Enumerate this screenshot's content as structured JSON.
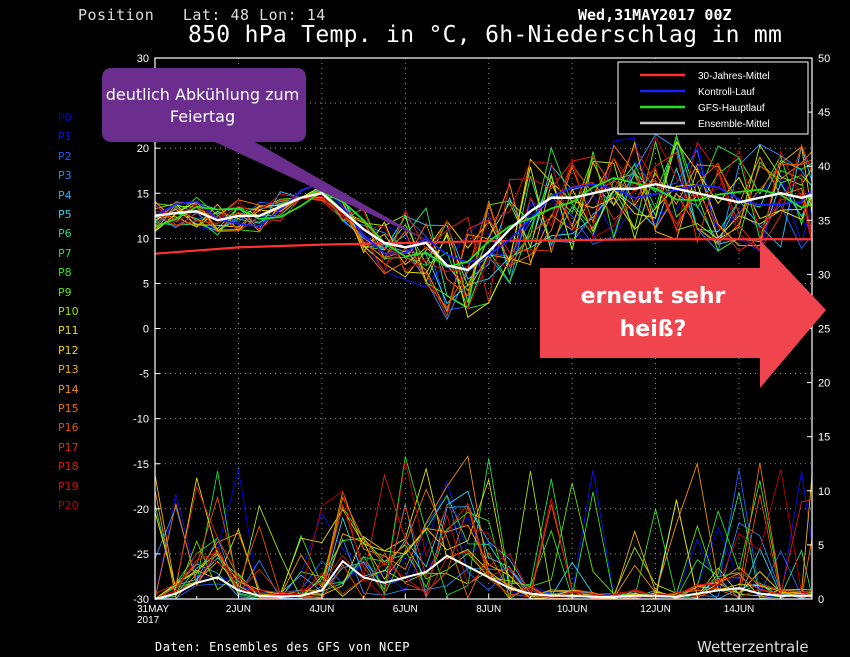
{
  "header": {
    "position": "Position   Lat: 48 Lon: 14",
    "date": "Wed,31MAY2017 00Z",
    "title": "850 hPa Temp. in °C, 6h-Niederschlag in mm"
  },
  "footer": {
    "source": "Daten: Ensembles des GFS von NCEP",
    "brand": "Wetterzentrale"
  },
  "members": [
    {
      "label": "P0",
      "color": "#0000ee"
    },
    {
      "label": "P1",
      "color": "#1010e8"
    },
    {
      "label": "P2",
      "color": "#1e5cf5"
    },
    {
      "label": "P3",
      "color": "#2a8af5"
    },
    {
      "label": "P4",
      "color": "#30b0f0"
    },
    {
      "label": "P5",
      "color": "#30d0e8"
    },
    {
      "label": "P6",
      "color": "#20d880"
    },
    {
      "label": "P7",
      "color": "#20e040"
    },
    {
      "label": "P8",
      "color": "#30e020"
    },
    {
      "label": "P9",
      "color": "#60e010"
    },
    {
      "label": "P10",
      "color": "#a0e010"
    },
    {
      "label": "P11",
      "color": "#e0e000"
    },
    {
      "label": "P12",
      "color": "#f0d000"
    },
    {
      "label": "P13",
      "color": "#f0b000"
    },
    {
      "label": "P14",
      "color": "#f09000"
    },
    {
      "label": "P15",
      "color": "#f07000"
    },
    {
      "label": "P16",
      "color": "#e85000"
    },
    {
      "label": "P17",
      "color": "#e03000"
    },
    {
      "label": "P18",
      "color": "#d82010"
    },
    {
      "label": "P19",
      "color": "#d01010"
    },
    {
      "label": "P20",
      "color": "#c00000"
    }
  ],
  "annotations": {
    "callout_left": "deutlich Abkühlung zum Feiertag",
    "callout_right": "erneut sehr heiß?",
    "callout_left_color": "#6b2d8e",
    "callout_right_color": "#f0454e"
  },
  "chart_data": {
    "type": "line",
    "title": "850 hPa Temp. in °C, 6h-Niederschlag in mm",
    "x_tick_labels": [
      "31MAY\n2017",
      "2JUN",
      "4JUN",
      "6JUN",
      "8JUN",
      "10JUN",
      "12JUN",
      "14JUN"
    ],
    "x_tick_days": [
      0,
      2,
      4,
      6,
      8,
      10,
      12,
      14
    ],
    "x_range_days": [
      0,
      15.75
    ],
    "y_left_label_unit": "°C",
    "y_left_range": [
      -30,
      30
    ],
    "y_left_ticks": [
      -30,
      -25,
      -20,
      -15,
      -10,
      -5,
      0,
      5,
      10,
      15,
      20,
      25,
      30
    ],
    "y_right_label_unit": "mm",
    "y_right_range": [
      0,
      50
    ],
    "y_right_ticks": [
      0,
      5,
      10,
      15,
      20,
      25,
      30,
      35,
      40,
      45,
      50
    ],
    "grid": true,
    "legend_position": "top-right",
    "legend": [
      {
        "name": "30-Jahres-Mittel",
        "color": "#ff3030"
      },
      {
        "name": "Kontroll-Lauf",
        "color": "#2020ff"
      },
      {
        "name": "GFS-Hauptlauf",
        "color": "#20e020"
      },
      {
        "name": "Ensemble-Mittel",
        "color": "#c8c8c8"
      }
    ],
    "series_30yr_mean_temp": {
      "x": [
        0,
        2,
        4,
        6,
        8,
        10,
        12,
        14,
        15.75
      ],
      "y": [
        8.3,
        9.0,
        9.3,
        9.5,
        9.7,
        9.8,
        9.9,
        9.9,
        9.9
      ]
    },
    "series_ensemble_mean_temp": {
      "x": [
        0,
        0.5,
        1,
        1.5,
        2,
        2.5,
        3,
        3.5,
        4,
        4.5,
        5,
        5.5,
        6,
        6.5,
        7,
        7.5,
        8,
        8.5,
        9,
        9.5,
        10,
        10.5,
        11,
        11.5,
        12,
        12.5,
        13,
        13.5,
        14,
        14.5,
        15,
        15.5,
        15.75
      ],
      "y": [
        12.5,
        12.8,
        13.0,
        12.0,
        12.5,
        12.5,
        13.5,
        14.5,
        15.0,
        13.0,
        11.0,
        9.5,
        9.0,
        9.5,
        7.0,
        6.5,
        8.5,
        11.0,
        13.0,
        14.5,
        14.5,
        15.0,
        15.5,
        15.5,
        16.0,
        15.5,
        15.0,
        14.5,
        14.0,
        14.5,
        15.0,
        14.5,
        14.8
      ]
    },
    "series_ensemble_mean_precip": {
      "x": [
        0,
        0.5,
        1,
        1.5,
        2,
        2.5,
        3,
        3.5,
        4,
        4.5,
        5,
        5.5,
        6,
        6.5,
        7,
        7.5,
        8,
        8.5,
        9,
        9.5,
        10,
        10.5,
        11,
        11.5,
        12,
        12.5,
        13,
        13.5,
        14,
        14.5,
        15,
        15.5,
        15.75
      ],
      "y": [
        0,
        0.5,
        1.5,
        2.0,
        0.8,
        0.3,
        0.2,
        0.3,
        0.8,
        3.5,
        2.0,
        1.5,
        2.0,
        2.5,
        4.0,
        3.0,
        2.0,
        1.0,
        0.5,
        0.3,
        0.3,
        0.2,
        0.2,
        0.3,
        0.3,
        0.2,
        0.5,
        0.8,
        1.0,
        0.5,
        0.3,
        0.3,
        0.3
      ]
    }
  }
}
